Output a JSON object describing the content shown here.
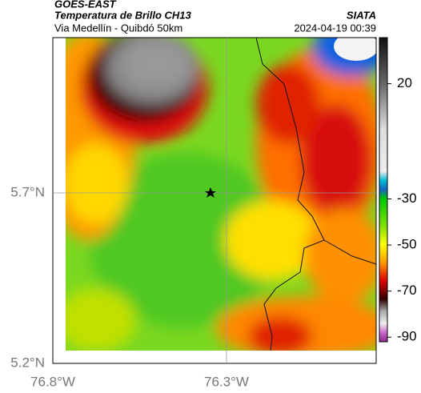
{
  "header": {
    "source": "GOES-EAST",
    "title": "Temperatura de Brillo CH13",
    "subtitle": "Via Medellín - Quibdó 50km",
    "brand": "SIATA",
    "timestamp": "2024-04-19 00:39"
  },
  "map": {
    "lat_labels": [
      "5.7°N",
      "5.2°N"
    ],
    "lon_labels": [
      "76.8°W",
      "76.3°W"
    ]
  },
  "colorbar": {
    "lim": [
      -92,
      40
    ],
    "ticks": [
      20,
      -30,
      -50,
      -70,
      -90
    ]
  }
}
